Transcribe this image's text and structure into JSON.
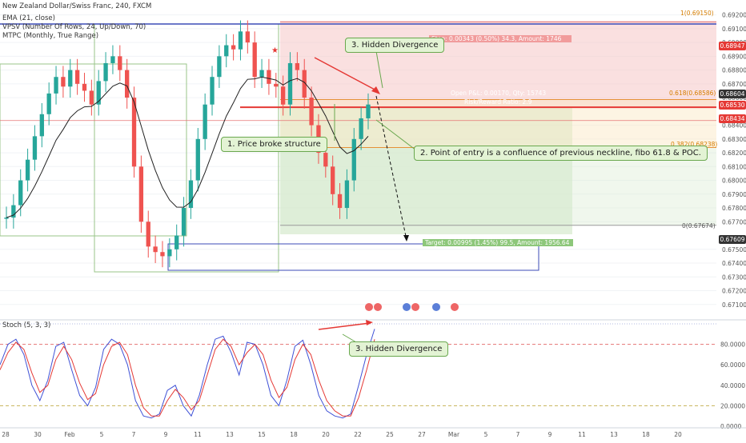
{
  "legend": {
    "title": "New Zealand Dollar/Swiss Franc, 240, FXCM",
    "ema": "EMA (21, close)",
    "vpsv": "VPSV (Number Of Rows, 24, Up/Down, 70)",
    "mtpc": "MTPC (Monthly, True Range)",
    "stoch": "Stoch (5, 3, 3)"
  },
  "colors": {
    "up": "#26a69a",
    "down": "#ef5350",
    "stop_zone": "#f6c6c6",
    "target_zone": "#cfe6c4",
    "neckline": "#e53935",
    "ema": "#222222",
    "stoch_k": "#3f51d6",
    "stoch_d": "#e53935"
  },
  "callouts": {
    "hidden_div_price": "3. Hidden Divergence",
    "broke_structure": "1. Price broke structure",
    "entry": "2. Point of entry is a confluence of previous neckline, fibo 61.8  & POC.",
    "hidden_div_stoch": "3. Hidden Divergence"
  },
  "position": {
    "stop": "Stop: 0.00343 (0.50%) 34.3, Amount: 1746",
    "open": "Open P&L: 0.00170, Qty: 15743",
    "rr": "Risk/Reward Ratio: 2.9",
    "target": "Target: 0.00995 (1.45%) 99.5, Amount: 1956.64"
  },
  "fib": {
    "f1": "1(0.69150)",
    "f618": "0.618(0.68586)",
    "f382": "0.382(0.68238)",
    "f0": "0(0.67674)"
  },
  "price_tags": [
    {
      "label": "0.68947",
      "color": "#e53935"
    },
    {
      "label": "0.68604",
      "color": "#333333"
    },
    {
      "label": "0.68530",
      "color": "#e53935"
    },
    {
      "label": "0.68434",
      "color": "#e53935"
    },
    {
      "label": "0.67609",
      "color": "#333333"
    }
  ],
  "price_axis": [
    "0.69200",
    "0.69100",
    "0.69000",
    "0.68900",
    "0.68800",
    "0.68700",
    "0.68600",
    "0.68400",
    "0.68300",
    "0.68200",
    "0.68100",
    "0.68000",
    "0.67900",
    "0.67800",
    "0.67700",
    "0.67500",
    "0.67400",
    "0.67300",
    "0.67200",
    "0.67100"
  ],
  "stoch_axis": [
    "80.0000",
    "60.0000",
    "40.0000",
    "20.0000",
    "0.0000"
  ],
  "time_axis": [
    "28",
    "30",
    "Feb",
    "5",
    "7",
    "9",
    "11",
    "13",
    "15",
    "18",
    "20",
    "22",
    "25",
    "27",
    "Mar",
    "5",
    "7",
    "9",
    "11",
    "13",
    "18",
    "20"
  ],
  "chart_data": [
    {
      "type": "candlestick",
      "title": "New Zealand Dollar/Swiss Franc, 240, FXCM",
      "ylim": [
        0.67,
        0.6925
      ],
      "x_labels": [
        "28",
        "30",
        "Feb",
        "5",
        "7",
        "9",
        "11",
        "13",
        "15",
        "18",
        "20",
        "22",
        "25",
        "27",
        "Mar",
        "5",
        "7",
        "9",
        "11",
        "13",
        "18",
        "20"
      ],
      "close_path": [
        0.6773,
        0.6782,
        0.68,
        0.6815,
        0.6832,
        0.6848,
        0.6863,
        0.6875,
        0.6868,
        0.688,
        0.687,
        0.6865,
        0.6855,
        0.6872,
        0.6885,
        0.689,
        0.688,
        0.686,
        0.681,
        0.677,
        0.6752,
        0.6748,
        0.6745,
        0.675,
        0.676,
        0.678,
        0.68,
        0.683,
        0.6855,
        0.6875,
        0.689,
        0.6898,
        0.6895,
        0.6908,
        0.69,
        0.6875,
        0.688,
        0.687,
        0.6868,
        0.6855,
        0.6885,
        0.688,
        0.686,
        0.684,
        0.682,
        0.681,
        0.679,
        0.678,
        0.68,
        0.683,
        0.6845,
        0.6855
      ],
      "levels": {
        "stop": 0.68947,
        "entry": 0.6853,
        "target": 0.67609,
        "fib_1": 0.6915,
        "fib_0618": 0.68586,
        "fib_0382": 0.68238,
        "fib_0": 0.67674
      }
    },
    {
      "type": "line",
      "title": "Stoch (5, 3, 3)",
      "ylim": [
        0,
        100
      ],
      "series": [
        {
          "name": "%K",
          "values": [
            60,
            80,
            85,
            70,
            40,
            25,
            45,
            78,
            82,
            55,
            30,
            20,
            38,
            75,
            85,
            80,
            60,
            25,
            10,
            8,
            12,
            35,
            40,
            20,
            10,
            30,
            60,
            85,
            88,
            72,
            50,
            82,
            80,
            60,
            30,
            20,
            45,
            78,
            84,
            60,
            30,
            15,
            10,
            8,
            12,
            40,
            70,
            95
          ]
        },
        {
          "name": "%D",
          "values": [
            55,
            72,
            82,
            75,
            52,
            33,
            40,
            65,
            78,
            65,
            42,
            26,
            32,
            60,
            78,
            82,
            70,
            40,
            18,
            10,
            10,
            25,
            36,
            28,
            16,
            25,
            50,
            75,
            85,
            78,
            60,
            72,
            80,
            70,
            45,
            28,
            38,
            65,
            80,
            70,
            45,
            25,
            15,
            10,
            10,
            28,
            55,
            85
          ]
        }
      ]
    }
  ]
}
